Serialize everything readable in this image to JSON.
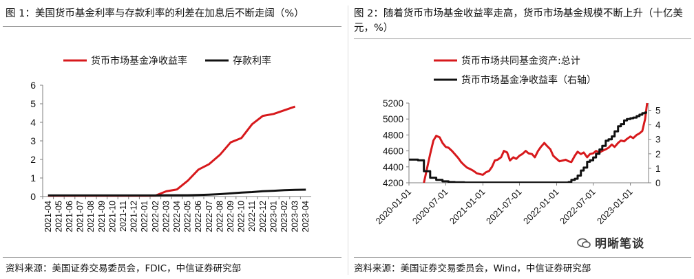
{
  "left": {
    "title": "图 1：美国货币基金利率与存款利率的利差在加息后不断走阔（%）",
    "source": "资料来源：美国证券交易委员会，FDIC，中信证券研究部"
  },
  "right": {
    "title": "图 2：随着货币市场基金收益率走高，货币市场基金规模不断上升（十亿美元，%）",
    "source": "资料来源：美国证券交易委员会，Wind，中信证券研究部",
    "watermark": "明晰笔谈"
  },
  "colors": {
    "red": "#d7191c",
    "black": "#111111",
    "axis": "#7f7f7f"
  },
  "chart_data": [
    {
      "type": "line",
      "title": "美国货币基金利率与存款利率的利差在加息后不断走阔（%）",
      "categories": [
        "2021-04",
        "2021-05",
        "2021-06",
        "2021-07",
        "2021-08",
        "2021-09",
        "2021-10",
        "2021-11",
        "2021-12",
        "2022-01",
        "2022-02",
        "2022-03",
        "2022-04",
        "2022-05",
        "2022-06",
        "2022-07",
        "2022-08",
        "2022-09",
        "2022-10",
        "2022-11",
        "2022-12",
        "2023-01",
        "2023-02",
        "2023-03",
        "2023-04"
      ],
      "ylim": [
        0,
        6
      ],
      "yticks": [
        "0",
        "1",
        "2",
        "3",
        "4",
        "5",
        "6"
      ],
      "legend_position": "top",
      "series": [
        {
          "name": "货币市场基金净收益率",
          "color": "#d7191c",
          "values": [
            0.04,
            0.04,
            0.04,
            0.04,
            0.04,
            0.04,
            0.04,
            0.04,
            0.04,
            0.04,
            0.05,
            0.28,
            0.38,
            0.85,
            1.45,
            1.75,
            2.25,
            2.92,
            3.15,
            3.9,
            4.35,
            4.45,
            4.65,
            4.85,
            null
          ]
        },
        {
          "name": "存款利率",
          "color": "#111111",
          "values": [
            0.06,
            0.06,
            0.06,
            0.06,
            0.06,
            0.06,
            0.06,
            0.06,
            0.06,
            0.06,
            0.06,
            0.07,
            0.07,
            0.07,
            0.08,
            0.1,
            0.13,
            0.17,
            0.21,
            0.24,
            0.29,
            0.31,
            0.34,
            0.36,
            0.37
          ]
        }
      ]
    },
    {
      "type": "line",
      "title": "随着货币市场基金收益率走高，货币市场基金规模不断上升（十亿美元，%）",
      "xticks": [
        "2020-01-01",
        "2020-07-01",
        "2021-01-01",
        "2021-07-01",
        "2022-01-01",
        "2022-07-01",
        "2023-01-01"
      ],
      "x_range": [
        "2020-01-01",
        "2023-04-01"
      ],
      "y_left": {
        "range": [
          4200,
          5200
        ],
        "ticks": [
          "4200",
          "4400",
          "4600",
          "4800",
          "5000",
          "5200"
        ]
      },
      "y_right": {
        "range": [
          0,
          5.5
        ],
        "ticks": [
          "0",
          "1",
          "2",
          "3",
          "4",
          "5"
        ]
      },
      "legend_position": "top",
      "series": [
        {
          "name": "货币市场共同基金资产:总计",
          "axis": "left",
          "color": "#d7191c",
          "x": [
            "2020-03-15",
            "2020-04-15",
            "2020-05-01",
            "2020-05-15",
            "2020-06-01",
            "2020-06-15",
            "2020-07-01",
            "2020-07-15",
            "2020-08-01",
            "2020-08-15",
            "2020-09-01",
            "2020-09-15",
            "2020-10-01",
            "2020-10-15",
            "2020-11-01",
            "2020-11-15",
            "2020-12-01",
            "2020-12-15",
            "2021-01-01",
            "2021-01-15",
            "2021-02-01",
            "2021-02-15",
            "2021-03-01",
            "2021-03-15",
            "2021-04-01",
            "2021-04-15",
            "2021-05-01",
            "2021-05-15",
            "2021-06-01",
            "2021-06-15",
            "2021-07-01",
            "2021-07-15",
            "2021-08-01",
            "2021-08-15",
            "2021-09-01",
            "2021-09-15",
            "2021-10-01",
            "2021-10-15",
            "2021-11-01",
            "2021-11-15",
            "2021-12-01",
            "2021-12-15",
            "2022-01-01",
            "2022-01-15",
            "2022-02-01",
            "2022-02-15",
            "2022-03-01",
            "2022-03-15",
            "2022-04-01",
            "2022-04-15",
            "2022-05-01",
            "2022-05-15",
            "2022-06-01",
            "2022-06-15",
            "2022-07-01",
            "2022-07-15",
            "2022-08-01",
            "2022-08-15",
            "2022-09-01",
            "2022-09-15",
            "2022-10-01",
            "2022-10-15",
            "2022-11-01",
            "2022-11-15",
            "2022-12-01",
            "2022-12-15",
            "2023-01-01",
            "2023-01-15",
            "2023-02-01",
            "2023-02-15",
            "2023-03-01",
            "2023-03-15",
            "2023-03-25"
          ],
          "values": [
            4200,
            4560,
            4730,
            4790,
            4770,
            4700,
            4650,
            4640,
            4600,
            4560,
            4510,
            4460,
            4420,
            4390,
            4370,
            4350,
            4320,
            4310,
            4300,
            4330,
            4350,
            4400,
            4480,
            4490,
            4520,
            4600,
            4580,
            4480,
            4520,
            4500,
            4540,
            4560,
            4600,
            4570,
            4560,
            4520,
            4600,
            4650,
            4700,
            4660,
            4620,
            4540,
            4500,
            4470,
            4480,
            4490,
            4470,
            4460,
            4540,
            4590,
            4560,
            4580,
            4520,
            4560,
            4570,
            4600,
            4580,
            4600,
            4620,
            4640,
            4680,
            4650,
            4700,
            4730,
            4720,
            4750,
            4780,
            4760,
            4800,
            4820,
            4850,
            5000,
            5200
          ]
        },
        {
          "name": "货币市场基金净收益率（右轴）",
          "axis": "right",
          "color": "#111111",
          "x": [
            "2020-01-01",
            "2020-02-15",
            "2020-03-15",
            "2020-04-15",
            "2020-05-15",
            "2020-06-15",
            "2020-07-15",
            "2020-08-15",
            "2020-10-01",
            "2021-01-01",
            "2021-06-01",
            "2022-01-01",
            "2022-03-01",
            "2022-03-15",
            "2022-04-01",
            "2022-04-15",
            "2022-05-01",
            "2022-05-15",
            "2022-06-01",
            "2022-06-15",
            "2022-07-01",
            "2022-07-15",
            "2022-08-01",
            "2022-08-15",
            "2022-09-01",
            "2022-09-15",
            "2022-10-01",
            "2022-10-15",
            "2022-11-01",
            "2022-11-15",
            "2022-12-01",
            "2022-12-15",
            "2023-01-01",
            "2023-01-15",
            "2023-02-01",
            "2023-02-15",
            "2023-03-01",
            "2023-03-15",
            "2023-03-25"
          ],
          "values": [
            1.6,
            1.55,
            0.8,
            0.35,
            0.2,
            0.1,
            0.05,
            0.04,
            0.02,
            0.02,
            0.02,
            0.02,
            0.05,
            0.2,
            0.28,
            0.5,
            0.85,
            1.05,
            1.45,
            1.55,
            1.75,
            2.0,
            2.3,
            2.55,
            2.9,
            3.0,
            3.2,
            3.55,
            3.9,
            4.05,
            4.3,
            4.4,
            4.45,
            4.5,
            4.6,
            4.7,
            4.8,
            4.85,
            4.85
          ]
        }
      ]
    }
  ]
}
